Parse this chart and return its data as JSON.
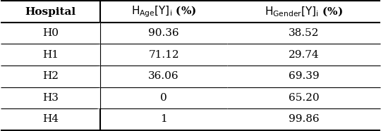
{
  "hospitals": [
    "H0",
    "H1",
    "H2",
    "H3",
    "H4"
  ],
  "h_age": [
    "90.36",
    "71.12",
    "36.06",
    "0",
    "1"
  ],
  "h_gender": [
    "38.52",
    "29.74",
    "69.39",
    "65.20",
    "99.86"
  ],
  "col_hospital": "Hospital",
  "col_age": "H$_{Age}$[Y]$_i$ (%)",
  "col_gender": "H$_{Gender}$[Y]$_i$ (%)",
  "background": "#ffffff",
  "text_color": "#000000",
  "figsize": [
    5.4,
    1.86
  ],
  "dpi": 100
}
